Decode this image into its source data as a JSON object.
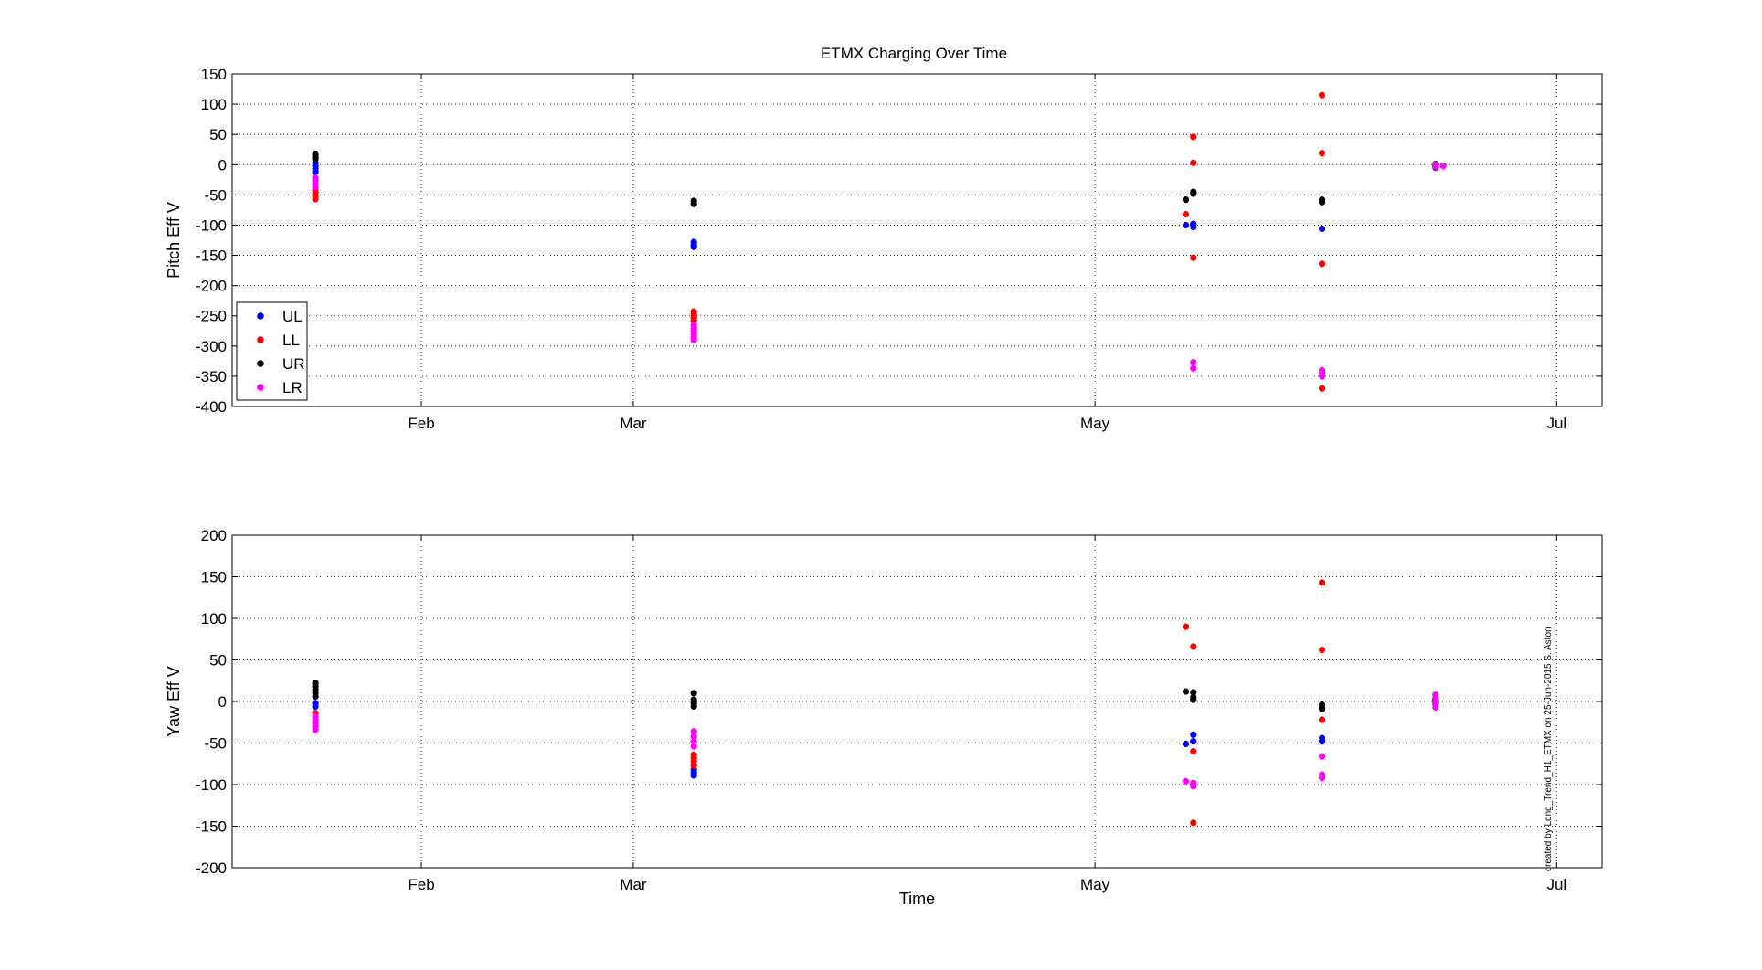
{
  "chart_data": [
    {
      "type": "scatter",
      "title": "ETMX Charging Over Time",
      "xlabel": "",
      "ylabel": "Pitch Eff V",
      "xlim": [
        "2015-01-07",
        "2015-07-07"
      ],
      "ylim": [
        -400,
        150
      ],
      "yticks": [
        150,
        100,
        50,
        0,
        -50,
        -100,
        -150,
        -200,
        -250,
        -300,
        -350,
        -400
      ],
      "xticks": [
        {
          "date": "2015-02-01",
          "label": "Feb"
        },
        {
          "date": "2015-03-01",
          "label": "Mar"
        },
        {
          "date": "2015-05-01",
          "label": "May"
        },
        {
          "date": "2015-07-01",
          "label": "Jul"
        }
      ],
      "grid": true,
      "legend_position": "bottom-left",
      "series": [
        {
          "name": "UL",
          "color": "#0000ff",
          "points": [
            [
              "2015-01-18",
              3
            ],
            [
              "2015-01-18",
              -2
            ],
            [
              "2015-01-18",
              -7
            ],
            [
              "2015-01-18",
              -12
            ],
            [
              "2015-03-09",
              -128
            ],
            [
              "2015-03-09",
              -133
            ],
            [
              "2015-03-09",
              -136
            ],
            [
              "2015-05-13",
              -100
            ],
            [
              "2015-05-14",
              -98
            ],
            [
              "2015-05-14",
              -103
            ],
            [
              "2015-05-31",
              -106
            ],
            [
              "2015-06-15",
              -2
            ],
            [
              "2015-06-15",
              -5
            ]
          ]
        },
        {
          "name": "LL",
          "color": "#ff0000",
          "points": [
            [
              "2015-01-18",
              -42
            ],
            [
              "2015-01-18",
              -47
            ],
            [
              "2015-01-18",
              -52
            ],
            [
              "2015-01-18",
              -57
            ],
            [
              "2015-03-09",
              -243
            ],
            [
              "2015-03-09",
              -248
            ],
            [
              "2015-03-09",
              -253
            ],
            [
              "2015-03-09",
              -258
            ],
            [
              "2015-05-13",
              -82
            ],
            [
              "2015-05-14",
              46
            ],
            [
              "2015-05-14",
              3
            ],
            [
              "2015-05-14",
              -154
            ],
            [
              "2015-05-31",
              115
            ],
            [
              "2015-05-31",
              19
            ],
            [
              "2015-05-31",
              -164
            ],
            [
              "2015-05-31",
              -370
            ],
            [
              "2015-06-15",
              -1
            ],
            [
              "2015-06-15",
              -4
            ]
          ]
        },
        {
          "name": "UR",
          "color": "#000000",
          "points": [
            [
              "2015-01-18",
              18
            ],
            [
              "2015-01-18",
              14
            ],
            [
              "2015-01-18",
              10
            ],
            [
              "2015-03-09",
              -60
            ],
            [
              "2015-03-09",
              -65
            ],
            [
              "2015-05-13",
              -58
            ],
            [
              "2015-05-14",
              -45
            ],
            [
              "2015-05-14",
              -48
            ],
            [
              "2015-05-31",
              -58
            ],
            [
              "2015-05-31",
              -62
            ],
            [
              "2015-06-15",
              1
            ],
            [
              "2015-06-15",
              -1
            ]
          ]
        },
        {
          "name": "LR",
          "color": "#ff00ff",
          "points": [
            [
              "2015-01-18",
              -22
            ],
            [
              "2015-01-18",
              -27
            ],
            [
              "2015-01-18",
              -32
            ],
            [
              "2015-01-18",
              -37
            ],
            [
              "2015-03-09",
              -265
            ],
            [
              "2015-03-09",
              -270
            ],
            [
              "2015-03-09",
              -275
            ],
            [
              "2015-03-09",
              -280
            ],
            [
              "2015-03-09",
              -285
            ],
            [
              "2015-03-09",
              -290
            ],
            [
              "2015-05-14",
              -327
            ],
            [
              "2015-05-14",
              -337
            ],
            [
              "2015-05-31",
              -340
            ],
            [
              "2015-05-31",
              -345
            ],
            [
              "2015-05-31",
              -350
            ],
            [
              "2015-06-15",
              0
            ],
            [
              "2015-06-15",
              -3
            ],
            [
              "2015-06-16",
              -2
            ]
          ]
        }
      ]
    },
    {
      "type": "scatter",
      "title": "",
      "xlabel": "Time",
      "ylabel": "Yaw Eff V",
      "xlim": [
        "2015-01-07",
        "2015-07-07"
      ],
      "ylim": [
        -200,
        200
      ],
      "yticks": [
        200,
        150,
        100,
        50,
        0,
        -50,
        -100,
        -150,
        -200
      ],
      "xticks": [
        {
          "date": "2015-02-01",
          "label": "Feb"
        },
        {
          "date": "2015-03-01",
          "label": "Mar"
        },
        {
          "date": "2015-05-01",
          "label": "May"
        },
        {
          "date": "2015-07-01",
          "label": "Jul"
        }
      ],
      "grid": true,
      "series": [
        {
          "name": "UL",
          "color": "#0000ff",
          "points": [
            [
              "2015-01-18",
              -2
            ],
            [
              "2015-01-18",
              -6
            ],
            [
              "2015-03-09",
              -82
            ],
            [
              "2015-03-09",
              -86
            ],
            [
              "2015-03-09",
              -89
            ],
            [
              "2015-05-13",
              -51
            ],
            [
              "2015-05-14",
              -40
            ],
            [
              "2015-05-14",
              -48
            ],
            [
              "2015-05-31",
              -44
            ],
            [
              "2015-05-31",
              -48
            ],
            [
              "2015-06-15",
              2
            ],
            [
              "2015-06-15",
              -2
            ]
          ]
        },
        {
          "name": "LL",
          "color": "#ff0000",
          "points": [
            [
              "2015-01-18",
              -14
            ],
            [
              "2015-01-18",
              -18
            ],
            [
              "2015-03-09",
              -64
            ],
            [
              "2015-03-09",
              -68
            ],
            [
              "2015-03-09",
              -72
            ],
            [
              "2015-03-09",
              -77
            ],
            [
              "2015-05-13",
              90
            ],
            [
              "2015-05-14",
              66
            ],
            [
              "2015-05-14",
              -60
            ],
            [
              "2015-05-14",
              -146
            ],
            [
              "2015-05-31",
              143
            ],
            [
              "2015-05-31",
              62
            ],
            [
              "2015-05-31",
              -22
            ],
            [
              "2015-06-15",
              1
            ],
            [
              "2015-06-15",
              -3
            ]
          ]
        },
        {
          "name": "UR",
          "color": "#000000",
          "points": [
            [
              "2015-01-18",
              22
            ],
            [
              "2015-01-18",
              18
            ],
            [
              "2015-01-18",
              14
            ],
            [
              "2015-01-18",
              10
            ],
            [
              "2015-01-18",
              6
            ],
            [
              "2015-03-09",
              10
            ],
            [
              "2015-03-09",
              2
            ],
            [
              "2015-03-09",
              -2
            ],
            [
              "2015-03-09",
              -6
            ],
            [
              "2015-05-13",
              12
            ],
            [
              "2015-05-14",
              11
            ],
            [
              "2015-05-14",
              5
            ],
            [
              "2015-05-14",
              2
            ],
            [
              "2015-05-31",
              -4
            ],
            [
              "2015-05-31",
              -7
            ],
            [
              "2015-05-31",
              -9
            ],
            [
              "2015-06-15",
              3
            ],
            [
              "2015-06-15",
              0
            ]
          ]
        },
        {
          "name": "LR",
          "color": "#ff00ff",
          "points": [
            [
              "2015-01-18",
              -18
            ],
            [
              "2015-01-18",
              -22
            ],
            [
              "2015-01-18",
              -26
            ],
            [
              "2015-01-18",
              -30
            ],
            [
              "2015-01-18",
              -34
            ],
            [
              "2015-03-09",
              -36
            ],
            [
              "2015-03-09",
              -42
            ],
            [
              "2015-03-09",
              -48
            ],
            [
              "2015-03-09",
              -54
            ],
            [
              "2015-05-13",
              -96
            ],
            [
              "2015-05-14",
              -98
            ],
            [
              "2015-05-14",
              -102
            ],
            [
              "2015-05-31",
              -66
            ],
            [
              "2015-05-31",
              -88
            ],
            [
              "2015-05-31",
              -92
            ],
            [
              "2015-06-15",
              8
            ],
            [
              "2015-06-15",
              4
            ],
            [
              "2015-06-15",
              -2
            ],
            [
              "2015-06-15",
              -7
            ]
          ]
        }
      ]
    }
  ],
  "legend": {
    "position": "bottom-left",
    "entries": [
      {
        "label": "UL",
        "color": "#0000ff"
      },
      {
        "label": "LL",
        "color": "#ff0000"
      },
      {
        "label": "UR",
        "color": "#000000"
      },
      {
        "label": "LR",
        "color": "#ff00ff"
      }
    ]
  },
  "footer_note": "created by Long_Trend_H1_ETMX on 25-Jun-2015 S. Aston"
}
